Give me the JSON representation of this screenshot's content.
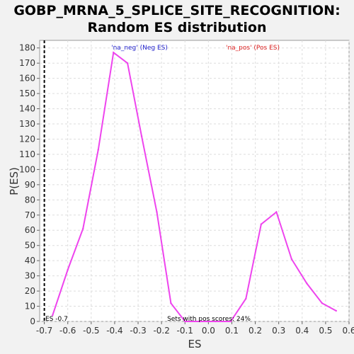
{
  "chart_data": {
    "type": "line",
    "title_line1": "GOBP_MRNA_5_SPLICE_SITE_RECOGNITION:",
    "title_line2": "Random ES distribution",
    "xlabel": "ES",
    "ylabel": "P(ES)",
    "xlim": [
      -0.72,
      0.6
    ],
    "ylim": [
      0,
      185
    ],
    "xticks": [
      -0.7,
      -0.6,
      -0.5,
      -0.4,
      -0.3,
      -0.2,
      -0.1,
      0.0,
      0.1,
      0.2,
      0.3,
      0.4,
      0.5,
      0.6
    ],
    "yticks": [
      0,
      10,
      20,
      30,
      40,
      50,
      60,
      70,
      80,
      90,
      100,
      110,
      120,
      130,
      140,
      150,
      160,
      170,
      180
    ],
    "grid": true,
    "series_color": "#ee44ee",
    "legend": [
      {
        "label": "'na_neg' (Neg ES)",
        "color": "#2222cc"
      },
      {
        "label": "'na_pos' (Pos ES)",
        "color": "#dd2222"
      }
    ],
    "marker_line": {
      "x": -0.7,
      "label": "ES -0.7",
      "color": "#000000"
    },
    "annotation": "Sets with pos scores: 24%",
    "series": [
      {
        "x": [
          -0.665,
          -0.6,
          -0.535,
          -0.47,
          -0.405,
          -0.345,
          -0.285,
          -0.22,
          -0.16,
          -0.1,
          -0.035,
          0.03,
          0.095,
          0.16,
          0.225,
          0.29,
          0.355,
          0.42,
          0.485,
          0.545
        ],
        "y": [
          4,
          34,
          61,
          113,
          177,
          170,
          122,
          72,
          12,
          0,
          0,
          0,
          0,
          15,
          64,
          72,
          41,
          25,
          12,
          7
        ]
      }
    ]
  }
}
